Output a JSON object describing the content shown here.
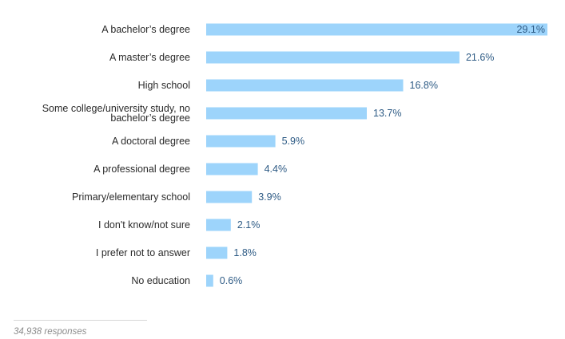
{
  "chart_data": {
    "type": "bar",
    "orientation": "horizontal",
    "categories": [
      [
        "A bachelor’s degree"
      ],
      [
        "A master’s degree"
      ],
      [
        "High school"
      ],
      [
        "Some college/university study, no",
        "bachelor’s degree"
      ],
      [
        "A doctoral degree"
      ],
      [
        "A professional degree"
      ],
      [
        "Primary/elementary school"
      ],
      [
        "I don't know/not sure"
      ],
      [
        "I prefer not to answer"
      ],
      [
        "No education"
      ]
    ],
    "values": [
      29.1,
      21.6,
      16.8,
      13.7,
      5.9,
      4.4,
      3.9,
      2.1,
      1.8,
      0.6
    ],
    "value_labels": [
      "29.1%",
      "21.6%",
      "16.8%",
      "13.7%",
      "5.9%",
      "4.4%",
      "3.9%",
      "2.1%",
      "1.8%",
      "0.6%"
    ],
    "xlim": [
      0,
      29.1
    ],
    "grid": false,
    "bar_color": "#9dd4fb",
    "value_label_color": "#2e5b85",
    "category_label_color": "#2b2b2b"
  },
  "footer": {
    "responses": "34,938 responses"
  }
}
